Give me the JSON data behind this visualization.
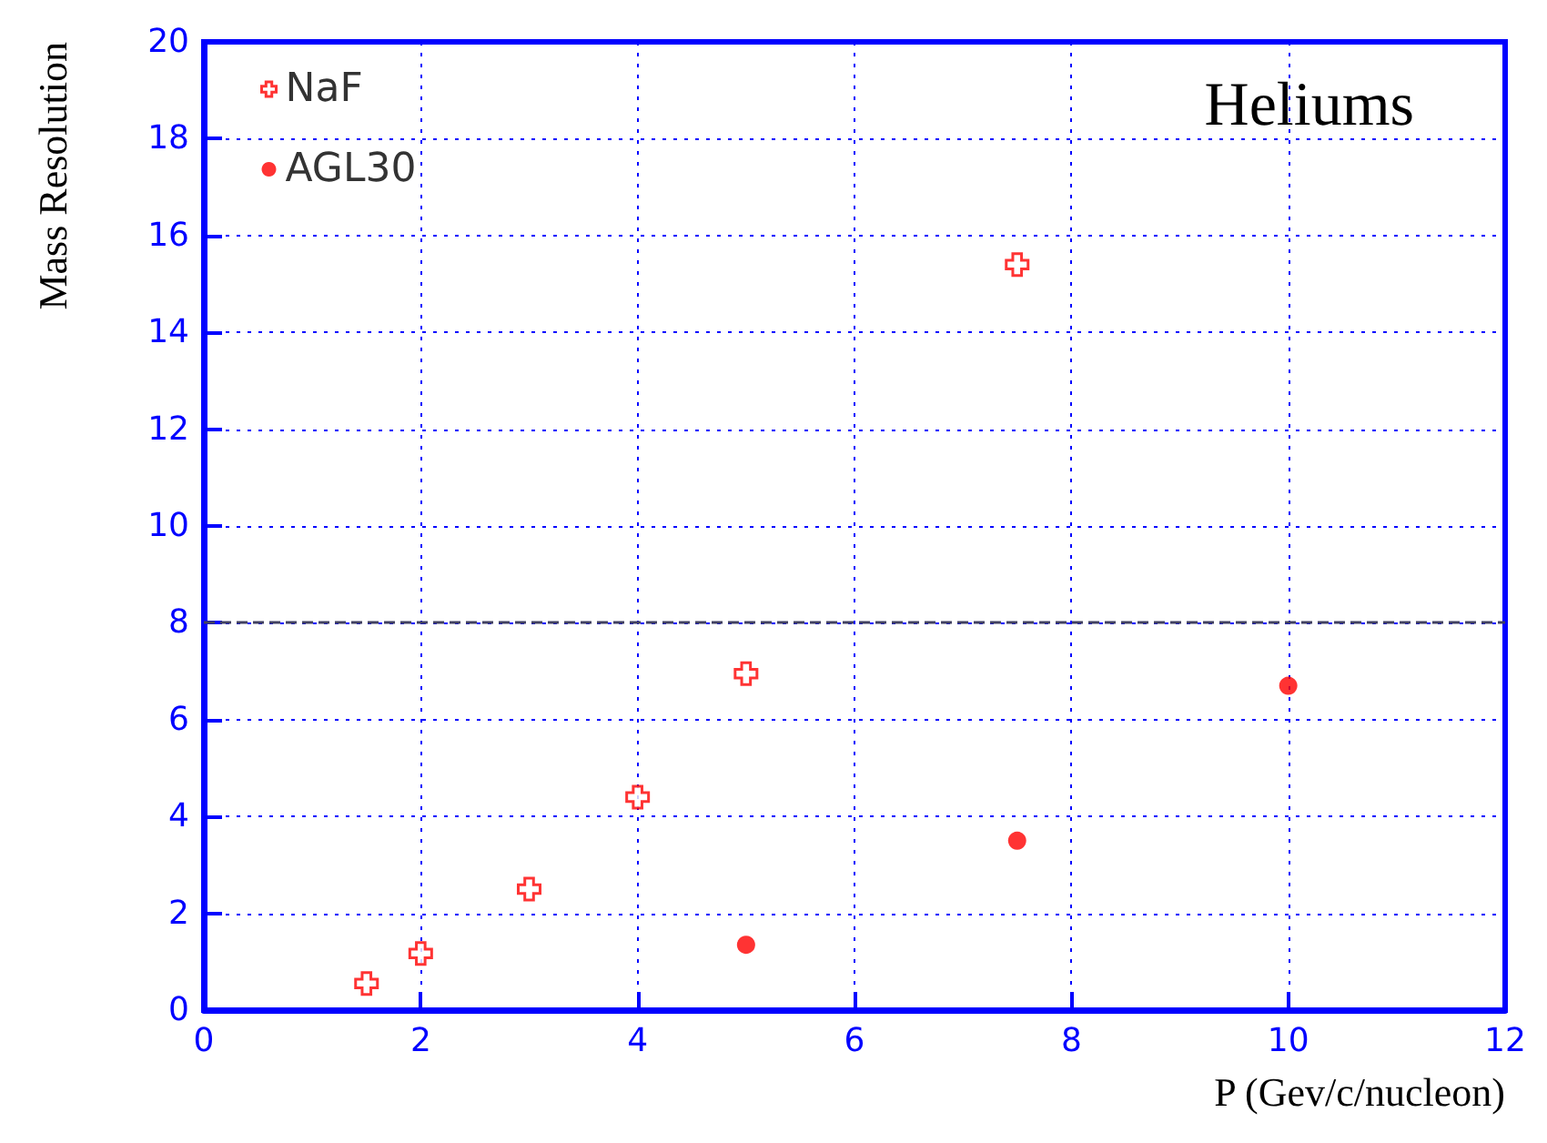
{
  "chart_data": {
    "type": "scatter",
    "title": "Heliums",
    "xlabel": "P (Gev/c/nucleon)",
    "ylabel": "Mass Resolution",
    "series": [
      {
        "name": "NaF",
        "color": "#ff0000",
        "marker": "cross",
        "x": [
          1.5,
          2,
          3,
          4,
          5,
          7.5
        ],
        "values": [
          0.55,
          1.17,
          2.5,
          4.4,
          6.95,
          15.4
        ]
      },
      {
        "name": "AGL30",
        "color": "#ff0000",
        "marker": "circle",
        "x": [
          5,
          7.5,
          10
        ],
        "values": [
          1.35,
          3.5,
          6.7
        ]
      }
    ],
    "xlim": [
      0,
      12
    ],
    "xticks": [
      0,
      2,
      4,
      6,
      8,
      10,
      12
    ],
    "ylim": [
      0,
      20
    ],
    "yticks": [
      0,
      2,
      4,
      6,
      8,
      10,
      12,
      14,
      16,
      18,
      20
    ],
    "ref_lines": [
      {
        "axis": "y",
        "value": 8,
        "color": "#404060",
        "line_style": "dashed"
      }
    ],
    "grid": true,
    "legend": "top left"
  }
}
